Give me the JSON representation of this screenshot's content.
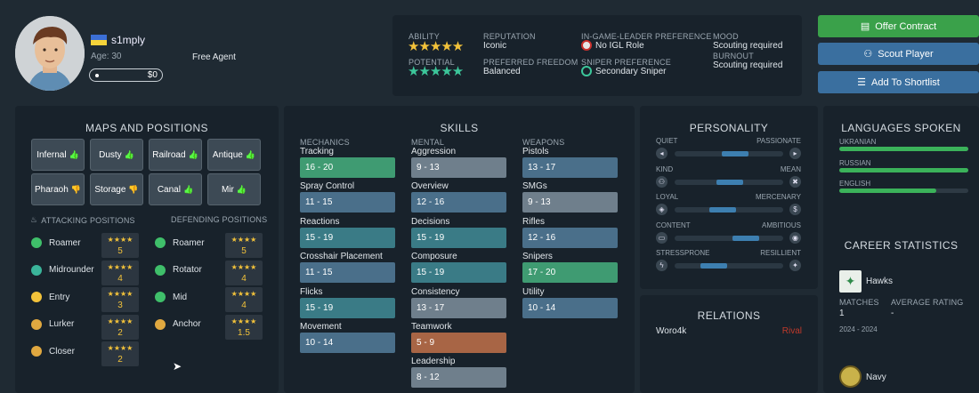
{
  "profile": {
    "name": "s1mply",
    "age": "Age: 30",
    "status": "Free Agent",
    "money": "$0",
    "flag": "ukraine-flag"
  },
  "info": {
    "ability_label": "ABILITY",
    "ability_stars": "★★★★★",
    "potential_label": "POTENTIAL",
    "potential_stars": "★★★★★",
    "reputation_label": "REPUTATION",
    "reputation": "Iconic",
    "freedom_label": "PREFERRED FREEDOM",
    "freedom": "Balanced",
    "igl_label": "IN-GAME-LEADER PREFERENCE",
    "igl": "No IGL Role",
    "sniper_label": "SNIPER PREFERENCE",
    "sniper": "Secondary Sniper",
    "mood_label": "MOOD",
    "mood": "Scouting required",
    "burnout_label": "BURNOUT",
    "burnout": "Scouting required"
  },
  "actions": {
    "offer": "Offer Contract",
    "scout": "Scout Player",
    "shortlist": "Add To Shortlist"
  },
  "maps_panel": {
    "title": "MAPS AND POSITIONS",
    "maps": [
      {
        "name": "Infernal",
        "pref": "up"
      },
      {
        "name": "Dusty",
        "pref": "up"
      },
      {
        "name": "Railroad",
        "pref": "up"
      },
      {
        "name": "Antique",
        "pref": "up"
      },
      {
        "name": "Pharaoh",
        "pref": "down"
      },
      {
        "name": "Storage",
        "pref": "down"
      },
      {
        "name": "Canal",
        "pref": "up"
      },
      {
        "name": "Mir",
        "pref": "up"
      }
    ],
    "attacking_label": "ATTACKING POSITIONS",
    "defending_label": "DEFENDING POSITIONS",
    "attacking": [
      {
        "name": "Roamer",
        "stars": "★★★★",
        "rating": "5"
      },
      {
        "name": "Midrounder",
        "stars": "★★★★",
        "rating": "4"
      },
      {
        "name": "Entry",
        "stars": "★★★★",
        "rating": "3"
      },
      {
        "name": "Lurker",
        "stars": "★★★★",
        "rating": "2"
      },
      {
        "name": "Closer",
        "stars": "★★★★",
        "rating": "2"
      }
    ],
    "defending": [
      {
        "name": "Roamer",
        "stars": "★★★★",
        "rating": "5"
      },
      {
        "name": "Rotator",
        "stars": "★★★★",
        "rating": "4"
      },
      {
        "name": "Mid",
        "stars": "★★★★",
        "rating": "4"
      },
      {
        "name": "Anchor",
        "stars": "★★★★",
        "rating": "1.5"
      }
    ]
  },
  "skills": {
    "title": "SKILLS",
    "mechanics_label": "MECHANICS",
    "mental_label": "MENTAL",
    "weapons_label": "WEAPONS",
    "mechanics": [
      {
        "name": "Tracking",
        "range": "16 - 20"
      },
      {
        "name": "Spray Control",
        "range": "11 - 15"
      },
      {
        "name": "Reactions",
        "range": "15 - 19"
      },
      {
        "name": "Crosshair Placement",
        "range": "11 - 15"
      },
      {
        "name": "Flicks",
        "range": "15 - 19"
      },
      {
        "name": "Movement",
        "range": "10 - 14"
      }
    ],
    "mental": [
      {
        "name": "Aggression",
        "range": "9 - 13"
      },
      {
        "name": "Overview",
        "range": "12 - 16"
      },
      {
        "name": "Decisions",
        "range": "15 - 19"
      },
      {
        "name": "Composure",
        "range": "15 - 19"
      },
      {
        "name": "Consistency",
        "range": "13 - 17"
      },
      {
        "name": "Teamwork",
        "range": "5 - 9"
      },
      {
        "name": "Leadership",
        "range": "8 - 12"
      }
    ],
    "weapons": [
      {
        "name": "Pistols",
        "range": "13 - 17"
      },
      {
        "name": "SMGs",
        "range": "9 - 13"
      },
      {
        "name": "Rifles",
        "range": "12 - 16"
      },
      {
        "name": "Snipers",
        "range": "17 - 20"
      },
      {
        "name": "Utility",
        "range": "10 - 14"
      }
    ]
  },
  "personality": {
    "title": "PERSONALITY",
    "traits": [
      {
        "left": "QUIET",
        "right": "PASSIONATE",
        "level": 0.6
      },
      {
        "left": "KIND",
        "right": "MEAN",
        "level": 0.55
      },
      {
        "left": "LOYAL",
        "right": "MERCENARY",
        "level": 0.48
      },
      {
        "left": "CONTENT",
        "right": "AMBITIOUS",
        "level": 0.7
      },
      {
        "left": "STRESSPRONE",
        "right": "RESILLIENT",
        "level": 0.4
      }
    ]
  },
  "relations": {
    "title": "RELATIONS",
    "items": [
      {
        "name": "Woro4k",
        "type": "Rival"
      }
    ]
  },
  "languages": {
    "title": "LANGUAGES SPOKEN",
    "items": [
      {
        "name": "UKRANIAN",
        "level": 1.0
      },
      {
        "name": "RUSSIAN",
        "level": 1.0
      },
      {
        "name": "ENGLISH",
        "level": 0.75
      }
    ]
  },
  "career": {
    "title": "CAREER STATISTICS",
    "team": "Hawks",
    "matches_label": "MATCHES",
    "matches": "1",
    "avg_label": "AVERAGE RATING",
    "avg": "-",
    "years": "2024 - 2024",
    "team2": "Navy"
  },
  "colors": {
    "offer": "#3aa14a",
    "scout": "#3a6f9f",
    "accent_green": "#3f9b72"
  }
}
